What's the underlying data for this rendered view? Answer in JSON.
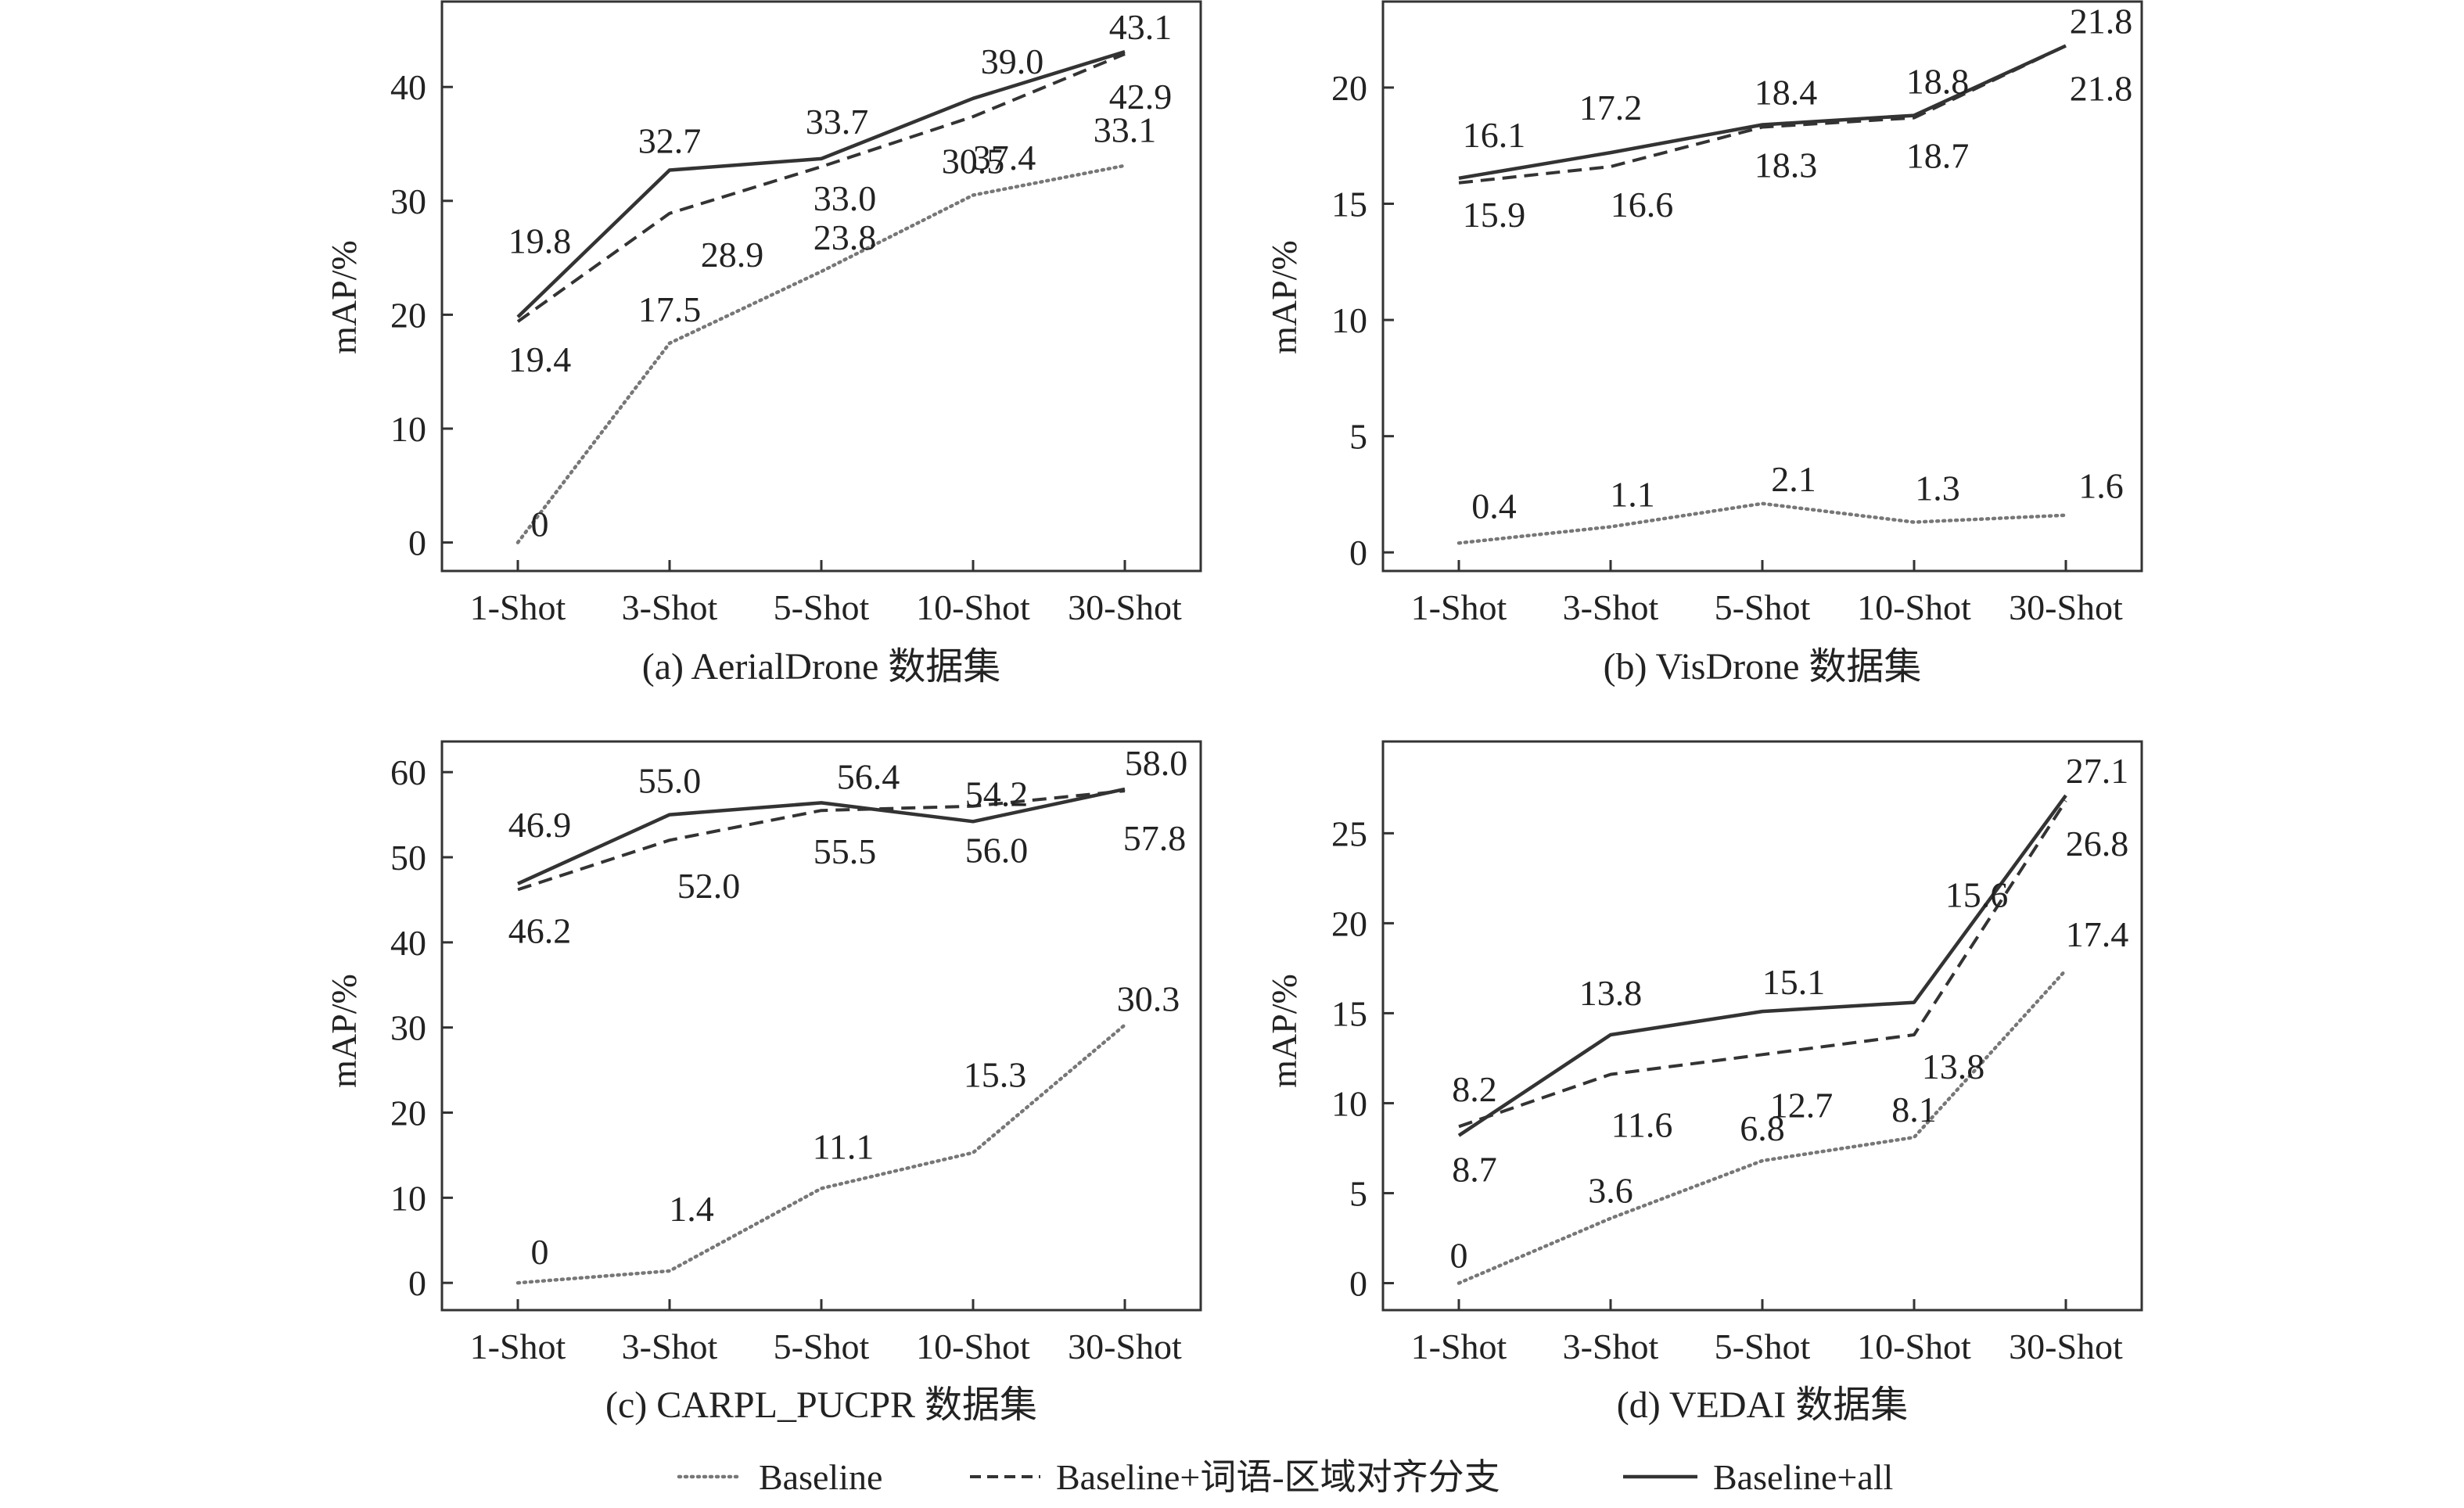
{
  "legend": [
    {
      "label": "Baseline",
      "style": "dotted",
      "color": "#777777"
    },
    {
      "label": "Baseline+词语-区域对齐分支",
      "style": "dashed",
      "color": "#333333"
    },
    {
      "label": "Baseline+all",
      "style": "solid",
      "color": "#333333"
    }
  ],
  "chart_data": [
    {
      "type": "line",
      "caption": "(a) AerialDrone 数据集",
      "ylabel": "mAP/%",
      "categories": [
        "1-Shot",
        "3-Shot",
        "5-Shot",
        "10-Shot",
        "30-Shot"
      ],
      "ylim": [
        -2.5,
        47.5
      ],
      "yticks": [
        0,
        10,
        20,
        30,
        40
      ],
      "series": [
        {
          "name": "Baseline",
          "values": [
            0,
            17.5,
            23.8,
            30.5,
            33.1
          ]
        },
        {
          "name": "Baseline+词语-区域对齐分支",
          "values": [
            19.4,
            28.9,
            33.0,
            37.4,
            42.9
          ]
        },
        {
          "name": "Baseline+all",
          "values": [
            19.8,
            32.7,
            33.7,
            39.0,
            43.1
          ]
        }
      ],
      "data_labels": [
        [
          "0",
          "17.5",
          "23.8",
          "30.5",
          "33.1"
        ],
        [
          "19.4",
          "28.9",
          "33.0",
          "37.4",
          "42.9"
        ],
        [
          "19.8",
          "32.7",
          "33.7",
          "39.0",
          "43.1"
        ]
      ]
    },
    {
      "type": "line",
      "caption": "(b) VisDrone 数据集",
      "ylabel": "mAP/%",
      "categories": [
        "1-Shot",
        "3-Shot",
        "5-Shot",
        "10-Shot",
        "30-Shot"
      ],
      "ylim": [
        -0.8,
        23.7
      ],
      "yticks": [
        0,
        5,
        10,
        15,
        20
      ],
      "series": [
        {
          "name": "Baseline",
          "values": [
            0.4,
            1.1,
            2.1,
            1.3,
            1.6
          ]
        },
        {
          "name": "Baseline+词语-区域对齐分支",
          "values": [
            15.9,
            16.6,
            18.3,
            18.7,
            21.8
          ]
        },
        {
          "name": "Baseline+all",
          "values": [
            16.1,
            17.2,
            18.4,
            18.8,
            21.8
          ]
        }
      ],
      "data_labels": [
        [
          "0.4",
          "1.1",
          "2.1",
          "1.3",
          "1.6"
        ],
        [
          "15.9",
          "16.6",
          "18.3",
          "18.7",
          "21.8"
        ],
        [
          "16.1",
          "17.2",
          "18.4",
          "18.8",
          "21.8"
        ]
      ]
    },
    {
      "type": "line",
      "caption": "(c) CARPL_PUCPR 数据集",
      "ylabel": "mAP/%",
      "categories": [
        "1-Shot",
        "3-Shot",
        "5-Shot",
        "10-Shot",
        "30-Shot"
      ],
      "ylim": [
        -3.2,
        63.6
      ],
      "yticks": [
        0,
        10,
        20,
        30,
        40,
        50,
        60
      ],
      "series": [
        {
          "name": "Baseline",
          "values": [
            0,
            1.4,
            11.1,
            15.3,
            30.3
          ]
        },
        {
          "name": "Baseline+词语-区域对齐分支",
          "values": [
            46.2,
            52.0,
            55.5,
            56.0,
            57.8
          ]
        },
        {
          "name": "Baseline+all",
          "values": [
            46.9,
            55.0,
            56.4,
            54.2,
            58.0
          ]
        }
      ],
      "data_labels": [
        [
          "0",
          "1.4",
          "11.1",
          "15.3",
          "30.3"
        ],
        [
          "46.2",
          "52.0",
          "55.5",
          "56.0",
          "57.8"
        ],
        [
          "46.9",
          "55.0",
          "56.4",
          "54.2",
          "58.0"
        ]
      ]
    },
    {
      "type": "line",
      "caption": "(d) VEDAI 数据集",
      "ylabel": "mAP/%",
      "categories": [
        "1-Shot",
        "3-Shot",
        "5-Shot",
        "10-Shot",
        "30-Shot"
      ],
      "ylim": [
        -1.5,
        30.1
      ],
      "yticks": [
        0,
        5,
        10,
        15,
        20,
        25
      ],
      "series": [
        {
          "name": "Baseline",
          "values": [
            0,
            3.6,
            6.8,
            8.1,
            17.4
          ]
        },
        {
          "name": "Baseline+词语-区域对齐分支",
          "values": [
            8.7,
            11.6,
            12.7,
            13.8,
            26.8
          ]
        },
        {
          "name": "Baseline+all",
          "values": [
            8.2,
            13.8,
            15.1,
            15.6,
            27.1
          ]
        }
      ],
      "data_labels": [
        [
          "0",
          "3.6",
          "6.8",
          "8.1",
          "17.4"
        ],
        [
          "8.7",
          "11.6",
          "12.7",
          "13.8",
          "26.8"
        ],
        [
          "8.2",
          "13.8",
          "15.1",
          "15.6",
          "27.1"
        ]
      ]
    }
  ]
}
